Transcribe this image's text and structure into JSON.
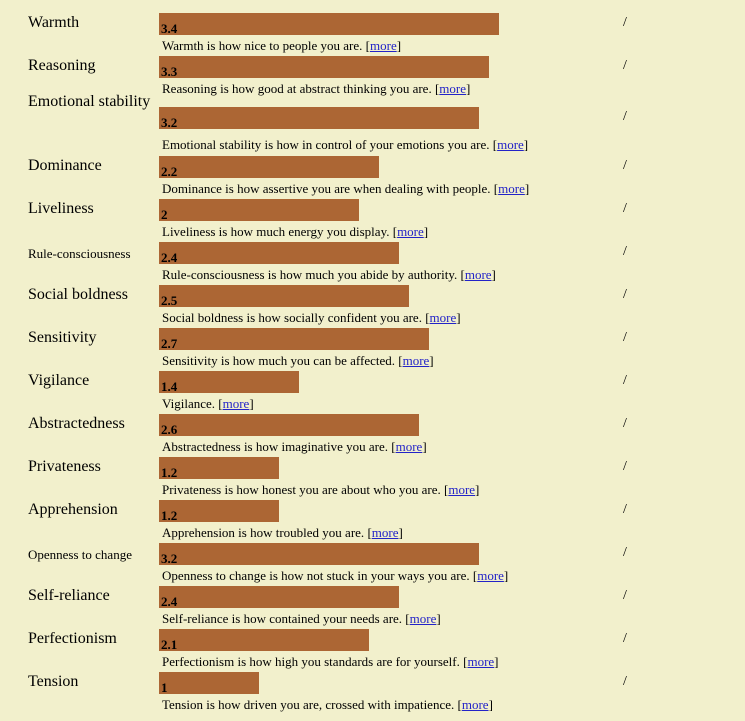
{
  "traits": [
    {
      "name": "Warmth",
      "value": "3.4",
      "score": 3.4,
      "description": "Warmth is how nice to people you are.",
      "more_label": "more",
      "separator": "/"
    },
    {
      "name": "Reasoning",
      "value": "3.3",
      "score": 3.3,
      "description": "Reasoning is how good at abstract thinking you are.",
      "more_label": "more",
      "separator": "/"
    },
    {
      "name": "Emotional stability",
      "value": "3.2",
      "score": 3.2,
      "description": "Emotional stability is how in control of your emotions you are.",
      "more_label": "more",
      "separator": "/"
    },
    {
      "name": "Dominance",
      "value": "2.2",
      "score": 2.2,
      "description": "Dominance is how assertive you are when dealing with people.",
      "more_label": "more",
      "separator": "/"
    },
    {
      "name": "Liveliness",
      "value": "2",
      "score": 2,
      "description": "Liveliness is how much energy you display.",
      "more_label": "more",
      "separator": "/"
    },
    {
      "name": "Rule-consciousness",
      "value": "2.4",
      "score": 2.4,
      "description": "Rule-consciousness is how much you abide by authority.",
      "more_label": "more",
      "separator": "/"
    },
    {
      "name": "Social boldness",
      "value": "2.5",
      "score": 2.5,
      "description": "Social boldness is how socially confident you are.",
      "more_label": "more",
      "separator": "/"
    },
    {
      "name": "Sensitivity",
      "value": "2.7",
      "score": 2.7,
      "description": "Sensitivity is how much you can be affected.",
      "more_label": "more",
      "separator": "/"
    },
    {
      "name": "Vigilance",
      "value": "1.4",
      "score": 1.4,
      "description": "Vigilance.",
      "more_label": "more",
      "separator": "/"
    },
    {
      "name": "Abstractedness",
      "value": "2.6",
      "score": 2.6,
      "description": "Abstractedness is how imaginative you are.",
      "more_label": "more",
      "separator": "/"
    },
    {
      "name": "Privateness",
      "value": "1.2",
      "score": 1.2,
      "description": "Privateness is how honest you are about who you are.",
      "more_label": "more",
      "separator": "/"
    },
    {
      "name": "Apprehension",
      "value": "1.2",
      "score": 1.2,
      "description": "Apprehension is how troubled you are.",
      "more_label": "more",
      "separator": "/"
    },
    {
      "name": "Openness to change",
      "value": "3.2",
      "score": 3.2,
      "description": "Openness to change is how not stuck in your ways you are.",
      "more_label": "more",
      "separator": "/"
    },
    {
      "name": "Self-reliance",
      "value": "2.4",
      "score": 2.4,
      "description": "Self-reliance is how contained your needs are.",
      "more_label": "more",
      "separator": "/"
    },
    {
      "name": "Perfectionism",
      "value": "2.1",
      "score": 2.1,
      "description": "Perfectionism is how high you standards are for yourself.",
      "more_label": "more",
      "separator": "/"
    },
    {
      "name": "Tension",
      "value": "1",
      "score": 1,
      "description": "Tension is how driven you are, crossed with impatience.",
      "more_label": "more",
      "separator": "/"
    }
  ],
  "colors": {
    "background": "#f2f0cc",
    "bar": "#ac6634",
    "link": "#2323c8"
  }
}
